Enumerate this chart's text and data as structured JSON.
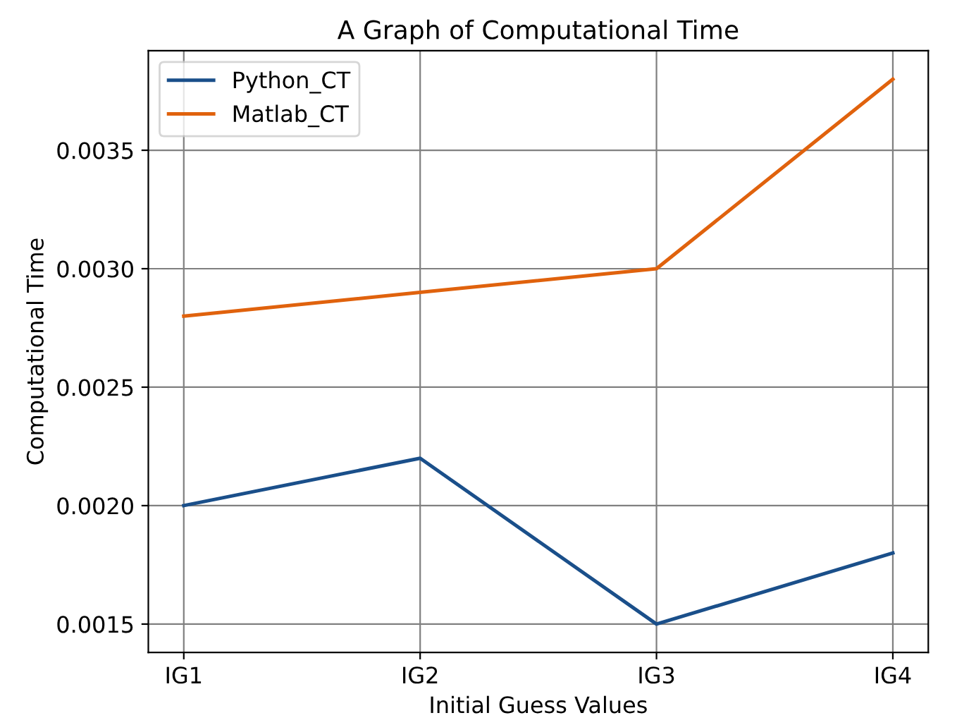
{
  "chart_data": {
    "type": "line",
    "title": "A Graph of Computational Time",
    "xlabel": "Initial Guess Values",
    "ylabel": "Computational Time",
    "categories": [
      "IG1",
      "IG2",
      "IG3",
      "IG4"
    ],
    "series": [
      {
        "name": "Python_CT",
        "color": "#1a4f8a",
        "values": [
          0.002,
          0.0022,
          0.0015,
          0.0018
        ]
      },
      {
        "name": "Matlab_CT",
        "color": "#e0620d",
        "values": [
          0.0028,
          0.0029,
          0.003,
          0.0038
        ]
      }
    ],
    "ylim": [
      0.00138,
      0.00392
    ],
    "yticks": [
      {
        "value": 0.0015,
        "label": "0.0015"
      },
      {
        "value": 0.002,
        "label": "0.0020"
      },
      {
        "value": 0.0025,
        "label": "0.0025"
      },
      {
        "value": 0.003,
        "label": "0.0030"
      },
      {
        "value": 0.0035,
        "label": "0.0035"
      }
    ],
    "grid": true,
    "legend": "top left",
    "marker": "none",
    "line_style": "solid"
  }
}
